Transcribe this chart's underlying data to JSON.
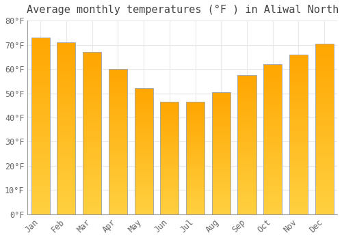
{
  "title": "Average monthly temperatures (°F ) in Aliwal North",
  "months": [
    "Jan",
    "Feb",
    "Mar",
    "Apr",
    "May",
    "Jun",
    "Jul",
    "Aug",
    "Sep",
    "Oct",
    "Nov",
    "Dec"
  ],
  "values": [
    73,
    71,
    67,
    60,
    52,
    46.5,
    46.5,
    50.5,
    57.5,
    62,
    66,
    70.5
  ],
  "ylim": [
    0,
    80
  ],
  "yticks": [
    0,
    10,
    20,
    30,
    40,
    50,
    60,
    70,
    80
  ],
  "ytick_labels": [
    "0°F",
    "10°F",
    "20°F",
    "30°F",
    "40°F",
    "50°F",
    "60°F",
    "70°F",
    "80°F"
  ],
  "bar_color_bottom": "#FFD040",
  "bar_color_top": "#FFA500",
  "bar_edge_color": "#AAAAAA",
  "background_color": "#FFFFFF",
  "grid_color": "#E8E8E8",
  "title_fontsize": 11,
  "tick_fontsize": 8.5,
  "tick_color": "#666666",
  "title_color": "#444444",
  "bar_width": 0.72
}
